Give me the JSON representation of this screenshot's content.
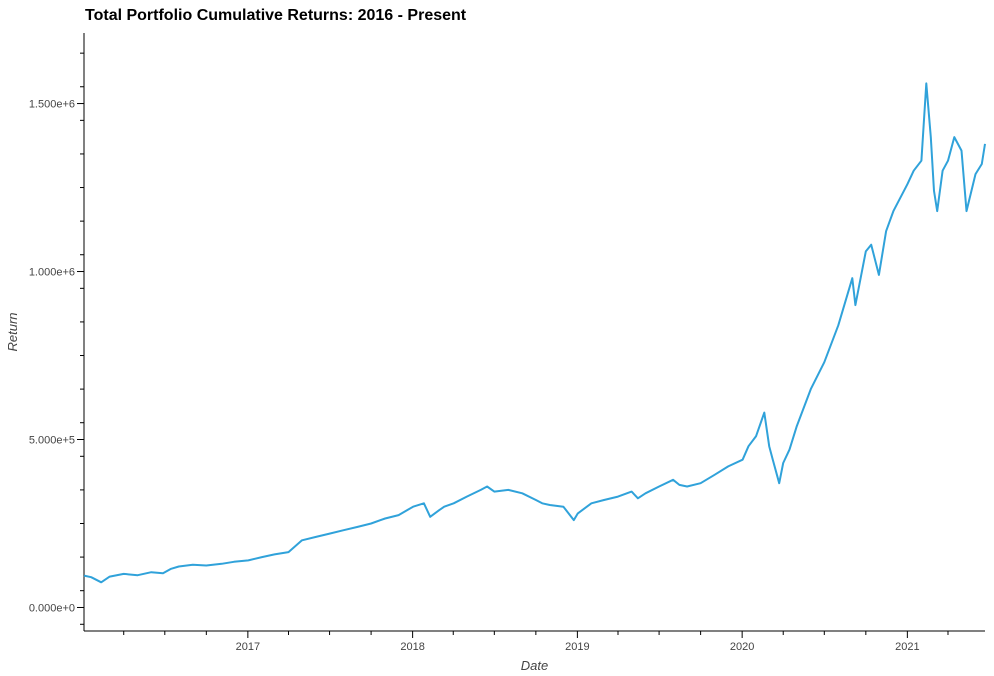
{
  "chart_data": {
    "type": "line",
    "title": "Total Portfolio Cumulative Returns: 2016 - Present",
    "xlabel": "Date",
    "ylabel": "Return",
    "xlim": [
      "2016-01-04",
      "2021-06-22"
    ],
    "ylim": [
      -70000,
      1710000
    ],
    "y_ticks": [
      {
        "value": 0,
        "label": "0.000e+0"
      },
      {
        "value": 500000,
        "label": "5.000e+5"
      },
      {
        "value": 1000000,
        "label": "1.000e+6"
      },
      {
        "value": 1500000,
        "label": "1.500e+6"
      }
    ],
    "x_ticks": [
      {
        "value": "2017-01-01",
        "label": "2017"
      },
      {
        "value": "2018-01-01",
        "label": "2018"
      },
      {
        "value": "2019-01-01",
        "label": "2019"
      },
      {
        "value": "2020-01-01",
        "label": "2020"
      },
      {
        "value": "2021-01-01",
        "label": "2021"
      }
    ],
    "grid": false,
    "line_color": "#30a2da",
    "series": [
      {
        "x": [
          "2016-01-04",
          "2016-01-20",
          "2016-02-11",
          "2016-03-01",
          "2016-04-01",
          "2016-05-02",
          "2016-06-01",
          "2016-06-27",
          "2016-07-15",
          "2016-08-01",
          "2016-09-01",
          "2016-10-01",
          "2016-11-04",
          "2016-12-01",
          "2017-01-02",
          "2017-02-01",
          "2017-03-01",
          "2017-04-01",
          "2017-05-01",
          "2017-06-01",
          "2017-07-01",
          "2017-08-01",
          "2017-09-01",
          "2017-10-01",
          "2017-11-01",
          "2017-12-01",
          "2018-01-02",
          "2018-01-26",
          "2018-02-09",
          "2018-03-01",
          "2018-03-12",
          "2018-04-02",
          "2018-05-01",
          "2018-06-01",
          "2018-06-15",
          "2018-07-01",
          "2018-08-01",
          "2018-09-01",
          "2018-10-01",
          "2018-10-15",
          "2018-11-01",
          "2018-12-01",
          "2018-12-24",
          "2019-01-02",
          "2019-02-01",
          "2019-03-01",
          "2019-04-01",
          "2019-05-01",
          "2019-05-15",
          "2019-06-01",
          "2019-07-01",
          "2019-08-01",
          "2019-08-15",
          "2019-09-01",
          "2019-10-01",
          "2019-11-01",
          "2019-12-01",
          "2020-01-02",
          "2020-01-15",
          "2020-02-01",
          "2020-02-19",
          "2020-03-01",
          "2020-03-09",
          "2020-03-23",
          "2020-04-01",
          "2020-04-15",
          "2020-05-01",
          "2020-06-01",
          "2020-07-01",
          "2020-08-01",
          "2020-09-01",
          "2020-09-08",
          "2020-10-01",
          "2020-10-13",
          "2020-10-30",
          "2020-11-15",
          "2020-12-01",
          "2021-01-01",
          "2021-01-15",
          "2021-02-01",
          "2021-02-12",
          "2021-02-22",
          "2021-03-01",
          "2021-03-08",
          "2021-03-20",
          "2021-04-01",
          "2021-04-15",
          "2021-05-01",
          "2021-05-12",
          "2021-06-01",
          "2021-06-15",
          "2021-06-22"
        ],
        "y": [
          95000,
          90000,
          75000,
          92000,
          100000,
          96000,
          105000,
          102000,
          115000,
          122000,
          127000,
          125000,
          130000,
          136000,
          140000,
          150000,
          158000,
          165000,
          200000,
          210000,
          220000,
          230000,
          240000,
          250000,
          265000,
          275000,
          300000,
          310000,
          270000,
          290000,
          300000,
          310000,
          330000,
          350000,
          360000,
          345000,
          350000,
          340000,
          320000,
          310000,
          305000,
          300000,
          260000,
          280000,
          310000,
          320000,
          330000,
          345000,
          325000,
          340000,
          360000,
          380000,
          365000,
          360000,
          370000,
          395000,
          420000,
          440000,
          480000,
          510000,
          580000,
          480000,
          440000,
          370000,
          430000,
          470000,
          540000,
          650000,
          730000,
          840000,
          980000,
          900000,
          1060000,
          1080000,
          990000,
          1120000,
          1180000,
          1260000,
          1300000,
          1330000,
          1560000,
          1400000,
          1240000,
          1180000,
          1300000,
          1330000,
          1400000,
          1360000,
          1180000,
          1290000,
          1320000,
          1380000
        ]
      }
    ]
  }
}
